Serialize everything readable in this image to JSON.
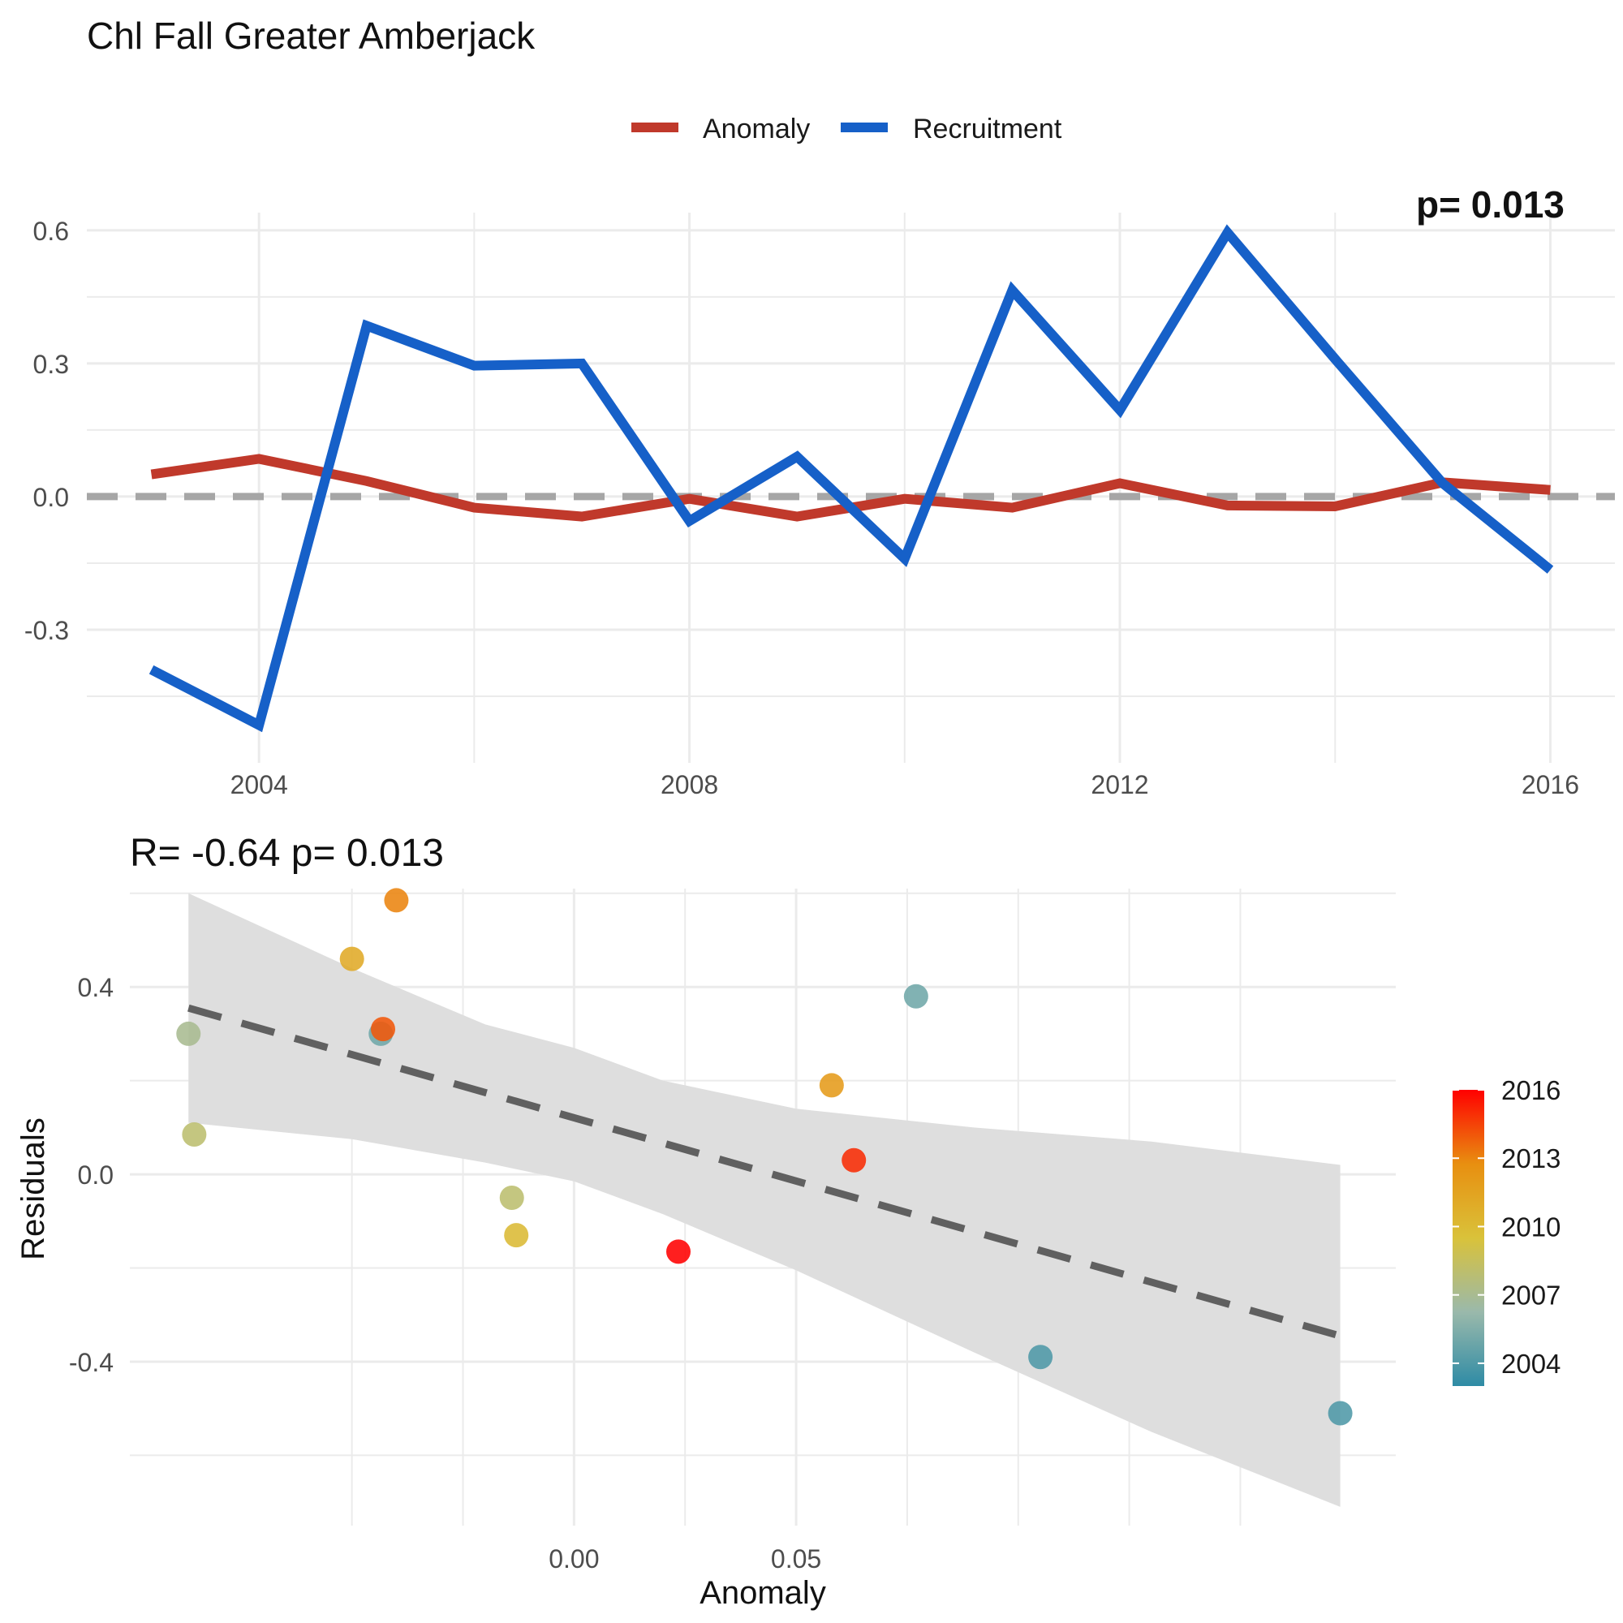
{
  "title": "Chl Fall Greater Amberjack",
  "chart_data": [
    {
      "type": "line",
      "legend": {
        "position": "top",
        "entries": [
          {
            "label": "Anomaly",
            "color": "#c0392b"
          },
          {
            "label": "Recruitment",
            "color": "#1660c8"
          }
        ]
      },
      "corner_annotation": "p= 0.013",
      "x": [
        2003,
        2004,
        2005,
        2006,
        2007,
        2008,
        2009,
        2010,
        2011,
        2012,
        2013,
        2014,
        2015,
        2016
      ],
      "series": [
        {
          "name": "Anomaly",
          "color": "#c0392b",
          "values": [
            0.05,
            0.085,
            0.035,
            -0.025,
            -0.045,
            -0.005,
            -0.045,
            -0.005,
            -0.025,
            0.03,
            -0.02,
            -0.022,
            0.032,
            0.015
          ]
        },
        {
          "name": "Recruitment",
          "color": "#1660c8",
          "values": [
            -0.39,
            -0.515,
            0.385,
            0.295,
            0.3,
            -0.055,
            0.09,
            -0.14,
            0.465,
            0.195,
            0.595,
            0.31,
            0.03,
            -0.165
          ]
        }
      ],
      "reference_line": {
        "y": 0,
        "style": "dashed",
        "color": "#a6a6a6"
      },
      "xlim": [
        2002.4,
        2016.6
      ],
      "ylim": [
        -0.6,
        0.64
      ],
      "xticks": [
        2004,
        2008,
        2012,
        2016
      ],
      "yticks": [
        -0.3,
        0.0,
        0.3,
        0.6
      ],
      "ytick_labels": [
        "-0.3",
        "0.0",
        "0.3",
        "0.6"
      ],
      "grid": true
    },
    {
      "type": "scatter",
      "title": "R= -0.64  p= 0.013",
      "xlabel": "Anomaly",
      "ylabel": "Residuals",
      "xlim": [
        -0.1,
        0.185
      ],
      "ylim": [
        -0.75,
        0.61
      ],
      "xticks": [
        0.0,
        0.05
      ],
      "xtick_labels": [
        "0.00",
        "0.05"
      ],
      "yticks": [
        -0.4,
        0.0,
        0.4
      ],
      "ytick_labels": [
        "-0.4",
        "0.0",
        "0.4"
      ],
      "grid": true,
      "points": [
        {
          "x": -0.0868,
          "y": 0.3,
          "year": 2007
        },
        {
          "x": -0.0855,
          "y": 0.085,
          "year": 2008
        },
        {
          "x": -0.05,
          "y": 0.46,
          "year": 2011
        },
        {
          "x": -0.0435,
          "y": 0.3,
          "year": 2005
        },
        {
          "x": -0.043,
          "y": 0.31,
          "year": 2014
        },
        {
          "x": -0.04,
          "y": 0.585,
          "year": 2013
        },
        {
          "x": -0.014,
          "y": -0.05,
          "year": 2008
        },
        {
          "x": -0.013,
          "y": -0.13,
          "year": 2010
        },
        {
          "x": 0.0235,
          "y": -0.165,
          "year": 2016
        },
        {
          "x": 0.058,
          "y": 0.19,
          "year": 2012
        },
        {
          "x": 0.063,
          "y": 0.03,
          "year": 2015
        },
        {
          "x": 0.077,
          "y": 0.38,
          "year": 2005
        },
        {
          "x": 0.105,
          "y": -0.39,
          "year": 2004
        },
        {
          "x": 0.1725,
          "y": -0.51,
          "year": 2004
        }
      ],
      "fit_line": {
        "x": [
          -0.0868,
          0.1725
        ],
        "y": [
          0.355,
          -0.345
        ],
        "style": "dashed",
        "color": "#606060"
      },
      "confidence_band": {
        "x": [
          -0.0868,
          -0.05,
          -0.02,
          0.0,
          0.02,
          0.05,
          0.09,
          0.13,
          0.1725
        ],
        "upper": [
          0.6,
          0.44,
          0.32,
          0.27,
          0.2,
          0.14,
          0.1,
          0.07,
          0.02
        ],
        "lower": [
          0.11,
          0.075,
          0.025,
          -0.015,
          -0.085,
          -0.205,
          -0.38,
          -0.55,
          -0.71
        ],
        "color": "#dedede"
      },
      "colorbar": {
        "title": "",
        "min": 2003,
        "max": 2016,
        "ticks": [
          2004,
          2007,
          2010,
          2013,
          2016
        ],
        "tick_labels": [
          "2004",
          "2007",
          "2010",
          "2013",
          "2016"
        ],
        "colors": [
          "#2e8ba5",
          "#9ab9ab",
          "#d9c23a",
          "#e88f10",
          "#ff0000"
        ]
      }
    }
  ]
}
